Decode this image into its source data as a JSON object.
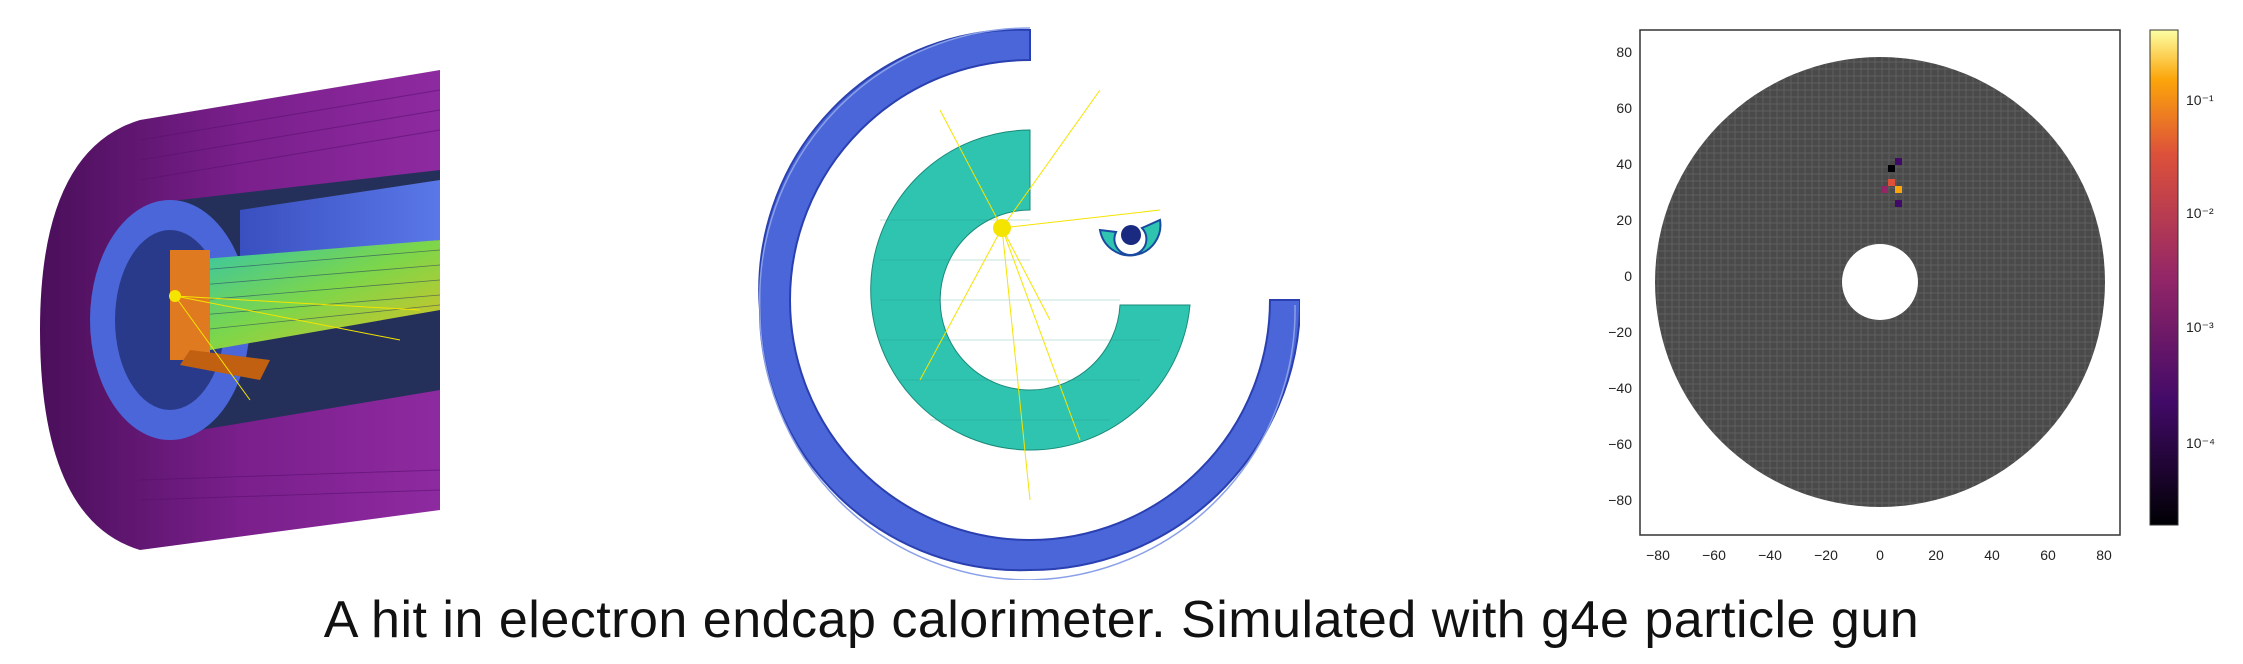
{
  "caption": "A hit in electron endcap calorimeter. Simulated with g4e particle gun",
  "heatmap": {
    "y_ticks": [
      "80",
      "60",
      "40",
      "20",
      "0",
      "−20",
      "−40",
      "−60",
      "−80"
    ],
    "x_ticks": [
      "−80",
      "−60",
      "−40",
      "−20",
      "0",
      "20",
      "40",
      "60",
      "80"
    ],
    "colorbar_ticks": [
      "10⁻¹",
      "10⁻²",
      "10⁻³",
      "10⁻⁴"
    ]
  },
  "colors": {
    "detector_outer": "#7a1f8c",
    "detector_blue": "#4a66d8",
    "crystal_teal": "#2fc4b0",
    "heatmap_cell": "#4a4a4a",
    "track_yellow": "#f5e400"
  }
}
